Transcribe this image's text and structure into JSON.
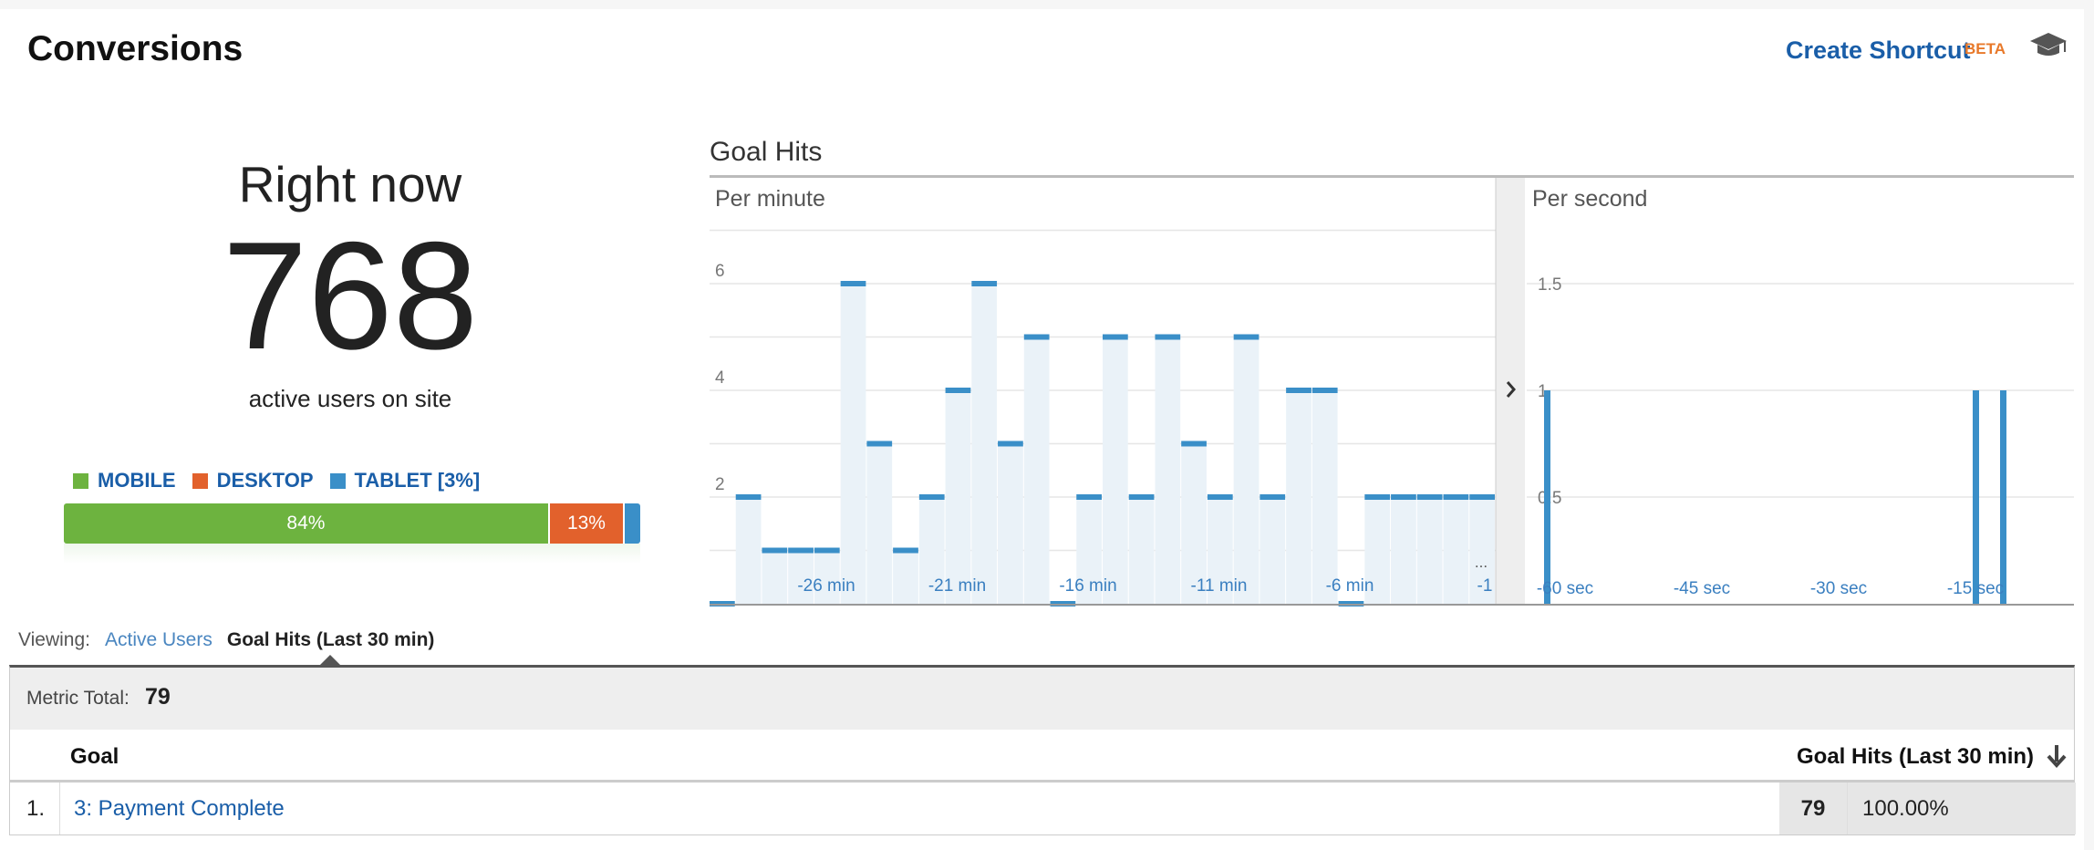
{
  "header": {
    "title": "Conversions",
    "shortcut_label": "Create Shortcut",
    "beta_label": "BETA"
  },
  "realtime": {
    "heading": "Right now",
    "active_users": "768",
    "subtext": "active users on site"
  },
  "devices": {
    "legend": [
      {
        "label": "MOBILE",
        "color": "#6db33f"
      },
      {
        "label": "DESKTOP",
        "color": "#e2612c"
      },
      {
        "label": "TABLET [3%]",
        "color": "#3a8fc8"
      }
    ],
    "segments": [
      {
        "name": "mobile",
        "percent": 84,
        "label": "84%",
        "color": "#6db33f"
      },
      {
        "name": "desktop",
        "percent": 13,
        "label": "13%",
        "color": "#e2612c"
      },
      {
        "name": "tablet",
        "percent": 3,
        "label": "",
        "color": "#3a8fc8"
      }
    ]
  },
  "goal_hits_title": "Goal Hits",
  "chart_data": [
    {
      "type": "bar",
      "title": "Per minute",
      "ylim": [
        0,
        7
      ],
      "yticks": [
        "2",
        "4",
        "6"
      ],
      "xtick_labels": [
        "-26 min",
        "-21 min",
        "-16 min",
        "-11 min",
        "-6 min",
        "-1"
      ],
      "ellipsis": "...",
      "values": [
        0,
        2,
        1,
        1,
        1,
        6,
        3,
        1,
        2,
        4,
        6,
        3,
        5,
        0,
        2,
        5,
        2,
        5,
        3,
        2,
        5,
        2,
        4,
        4,
        0,
        2,
        2,
        2,
        2,
        2
      ]
    },
    {
      "type": "bar",
      "title": "Per second",
      "ylim": [
        0,
        2
      ],
      "yticks": [
        "0.5",
        "1",
        "1.5"
      ],
      "xtick_labels": [
        "-60 sec",
        "-45 sec",
        "-30 sec",
        "-15 sec"
      ],
      "spikes": [
        {
          "second": -60,
          "value": 1
        },
        {
          "second": -13,
          "value": 1
        },
        {
          "second": -10,
          "value": 1
        }
      ]
    }
  ],
  "viewing": {
    "label": "Viewing:",
    "options": [
      "Active Users",
      "Goal Hits (Last 30 min)"
    ],
    "selected": "Goal Hits (Last 30 min)"
  },
  "metric_total": {
    "label": "Metric Total:",
    "value": "79"
  },
  "table": {
    "columns": [
      "Goal",
      "Goal Hits (Last 30 min)"
    ],
    "rows": [
      {
        "index": "1.",
        "goal": "3: Payment Complete",
        "hits": "79",
        "percent": "100.00%"
      }
    ]
  },
  "colors": {
    "accent_blue": "#1a5ea8",
    "bar_blue": "#3a8fc8",
    "bar_fill": "#eaf2f8"
  }
}
